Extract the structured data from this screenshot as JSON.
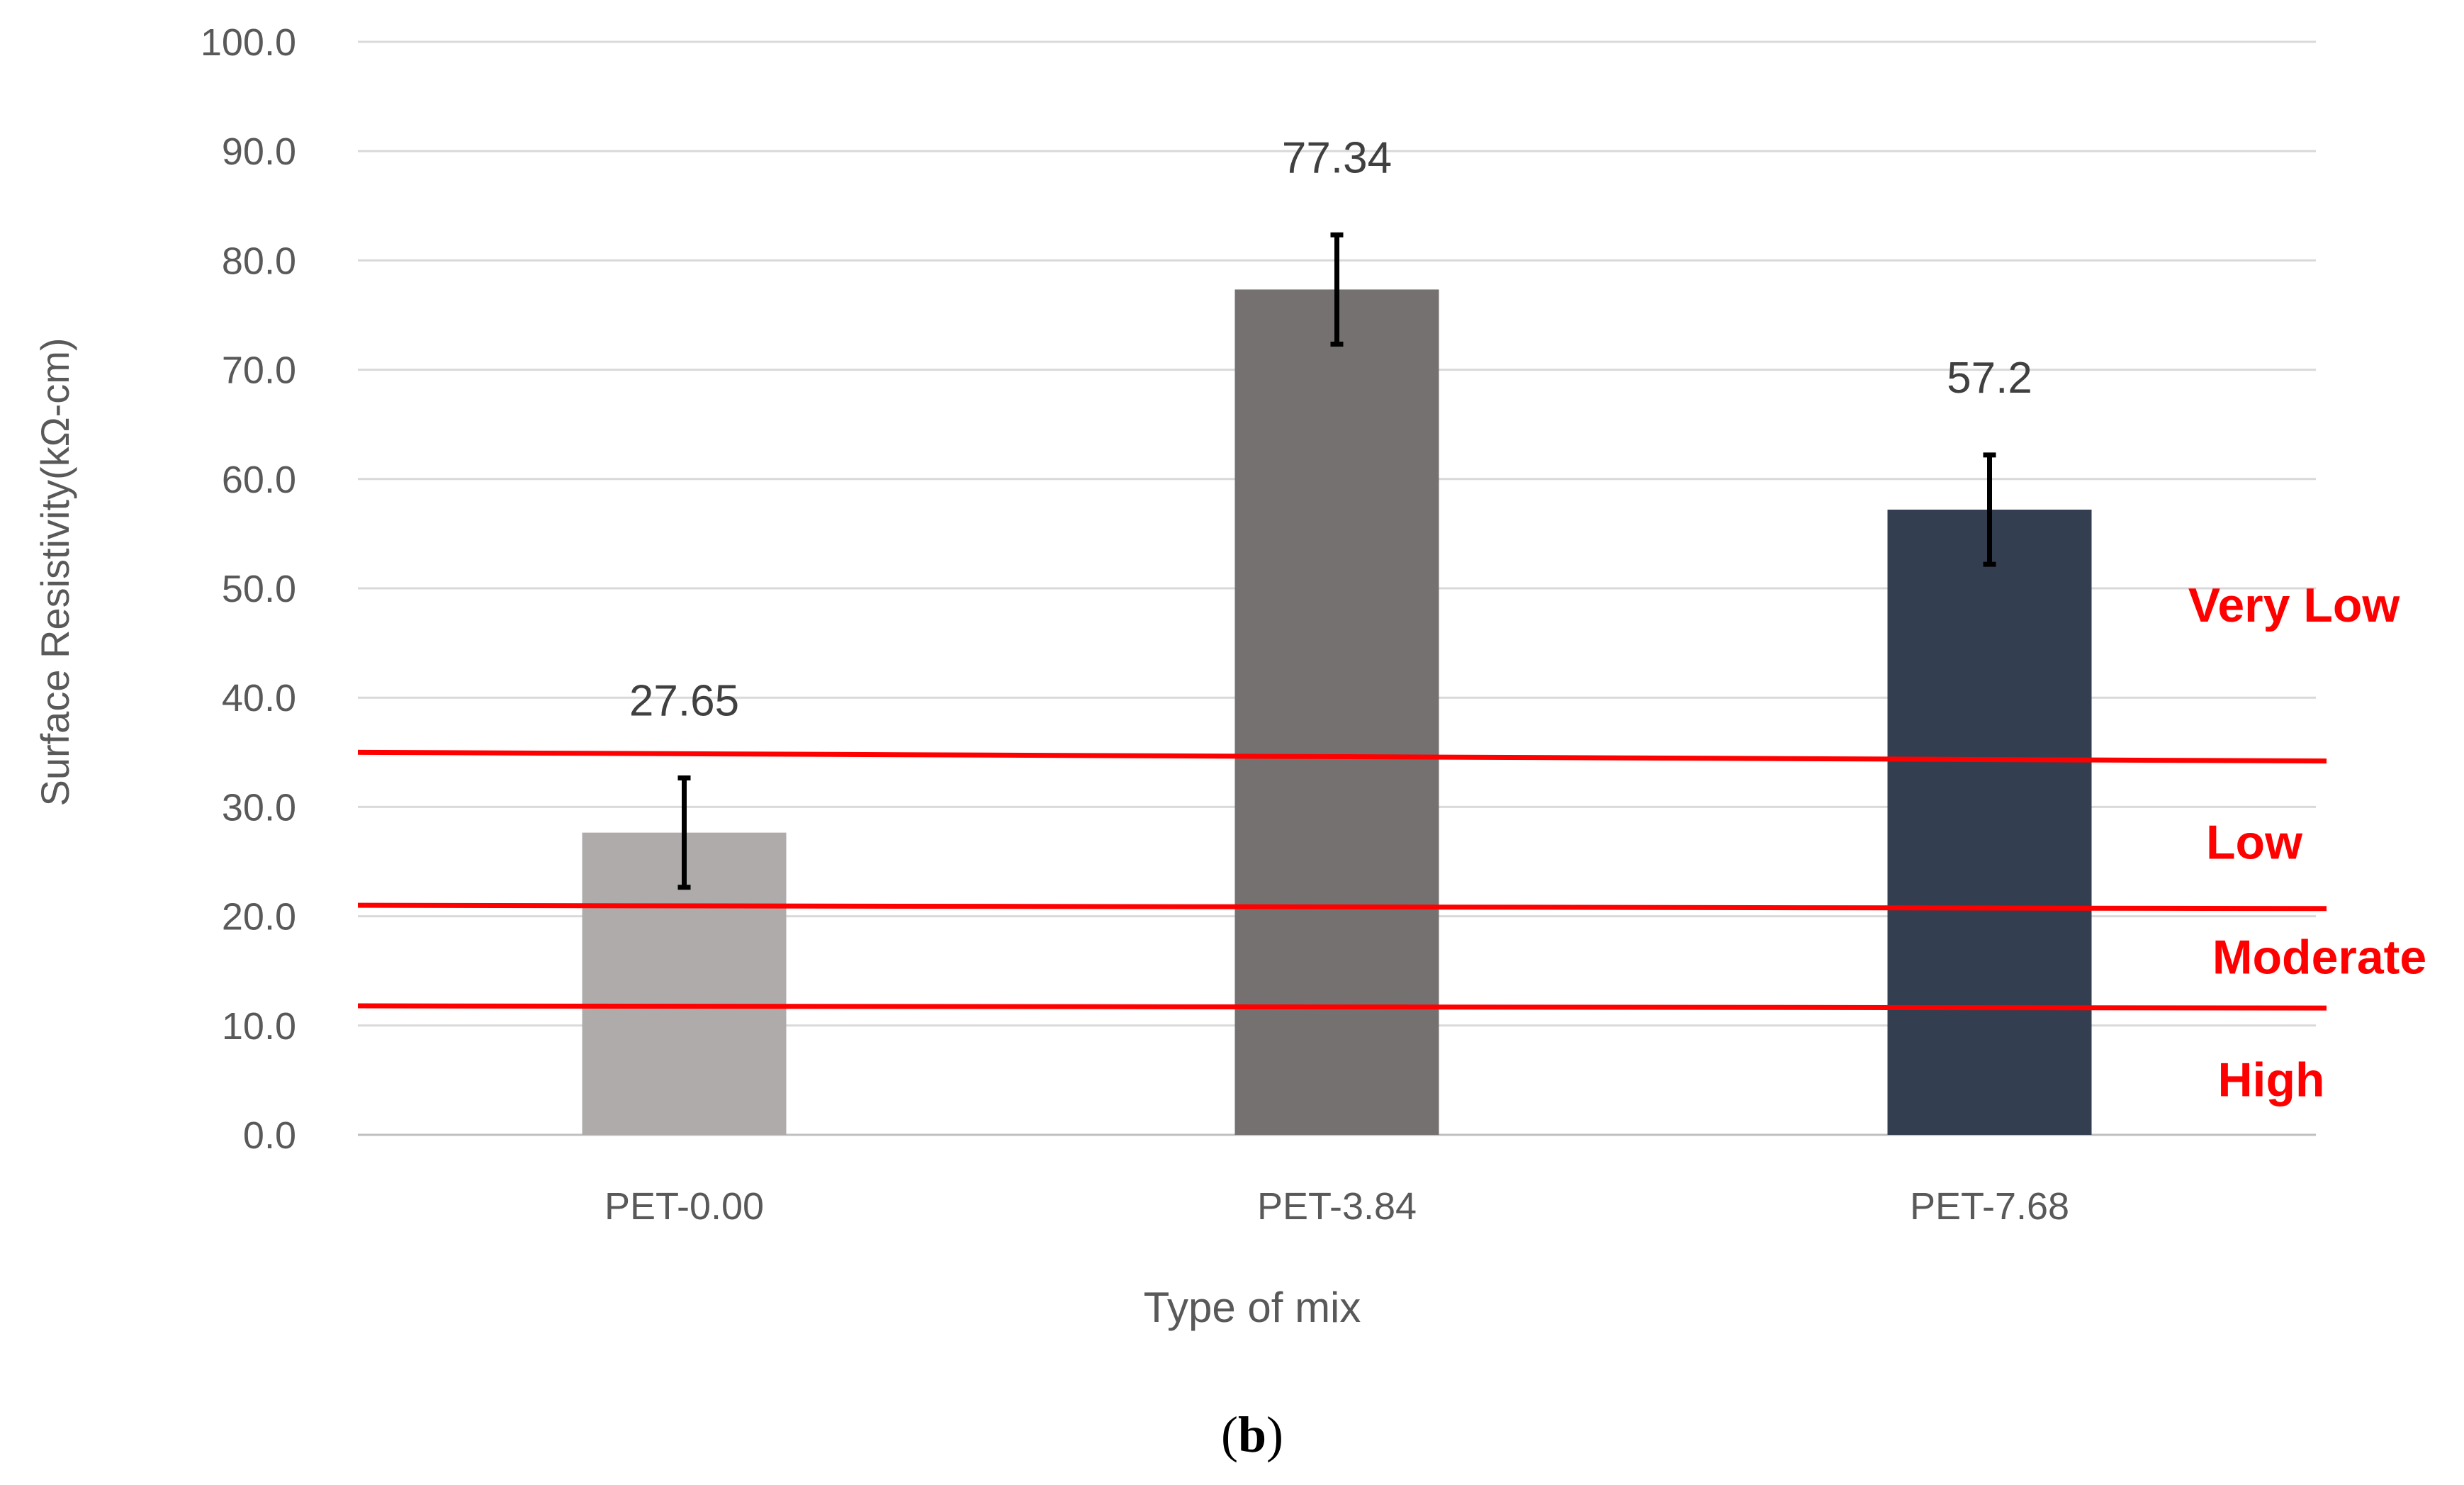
{
  "chart_data": {
    "type": "bar",
    "categories": [
      "PET-0.00",
      "PET-3.84",
      "PET-7.68"
    ],
    "values": [
      27.65,
      77.34,
      57.2
    ],
    "data_labels": [
      "27.65",
      "77.34",
      "57.2"
    ],
    "error": [
      5.0,
      5.0,
      5.0
    ],
    "bar_colors": [
      "#afabab",
      "#767171",
      "#333f50"
    ],
    "xlabel": "Type of mix",
    "ylabel": "Surface Resistivity(kΩ-cm)",
    "ylim": [
      0,
      100
    ],
    "ytick_labels": [
      "0.0",
      "10.0",
      "20.0",
      "30.0",
      "40.0",
      "50.0",
      "60.0",
      "70.0",
      "80.0",
      "90.0",
      "100.0"
    ],
    "grid": true,
    "threshold_lines": [
      {
        "value": 35.0,
        "end_value": 34.2,
        "color": "#ff0000"
      },
      {
        "value": 21.0,
        "end_value": 20.7,
        "color": "#ff0000"
      },
      {
        "value": 11.8,
        "end_value": 11.6,
        "color": "#ff0000"
      }
    ],
    "zone_labels": [
      "Very Low",
      "Low",
      "Moderate",
      "High"
    ],
    "zone_label_values": [
      48.5,
      26.8,
      16.3,
      5.1
    ],
    "panel_label": {
      "open": "(",
      "letter": "b",
      "close": ")"
    }
  }
}
